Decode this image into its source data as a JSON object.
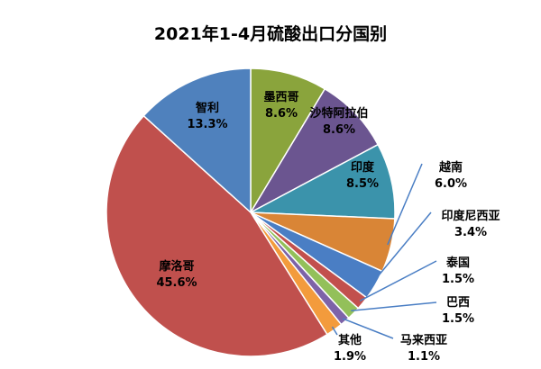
{
  "chart_data": {
    "type": "pie",
    "title": "2021年1-4月硫酸出口分国别",
    "slices": [
      {
        "label": "墨西哥",
        "value": 8.6,
        "value_text": "8.6%",
        "color": "#8aa43c"
      },
      {
        "label": "沙特阿拉伯",
        "value": 8.6,
        "value_text": "8.6%",
        "color": "#6b5590"
      },
      {
        "label": "印度",
        "value": 8.5,
        "value_text": "8.5%",
        "color": "#3b93ab"
      },
      {
        "label": "越南",
        "value": 6.0,
        "value_text": "6.0%",
        "color": "#d98536"
      },
      {
        "label": "印度尼西亚",
        "value": 3.4,
        "value_text": "3.4%",
        "color": "#4a7ec4"
      },
      {
        "label": "泰国",
        "value": 1.5,
        "value_text": "1.5%",
        "color": "#c2504d"
      },
      {
        "label": "巴西",
        "value": 1.5,
        "value_text": "1.5%",
        "color": "#93c05a"
      },
      {
        "label": "马来西亚",
        "value": 1.1,
        "value_text": "1.1%",
        "color": "#7d63a8"
      },
      {
        "label": "其他",
        "value": 1.9,
        "value_text": "1.9%",
        "color": "#f39b3c"
      },
      {
        "label": "摩洛哥",
        "value": 45.6,
        "value_text": "45.6%",
        "color": "#c0504d"
      },
      {
        "label": "智利",
        "value": 13.3,
        "value_text": "13.3%",
        "color": "#4f81bd"
      }
    ]
  }
}
